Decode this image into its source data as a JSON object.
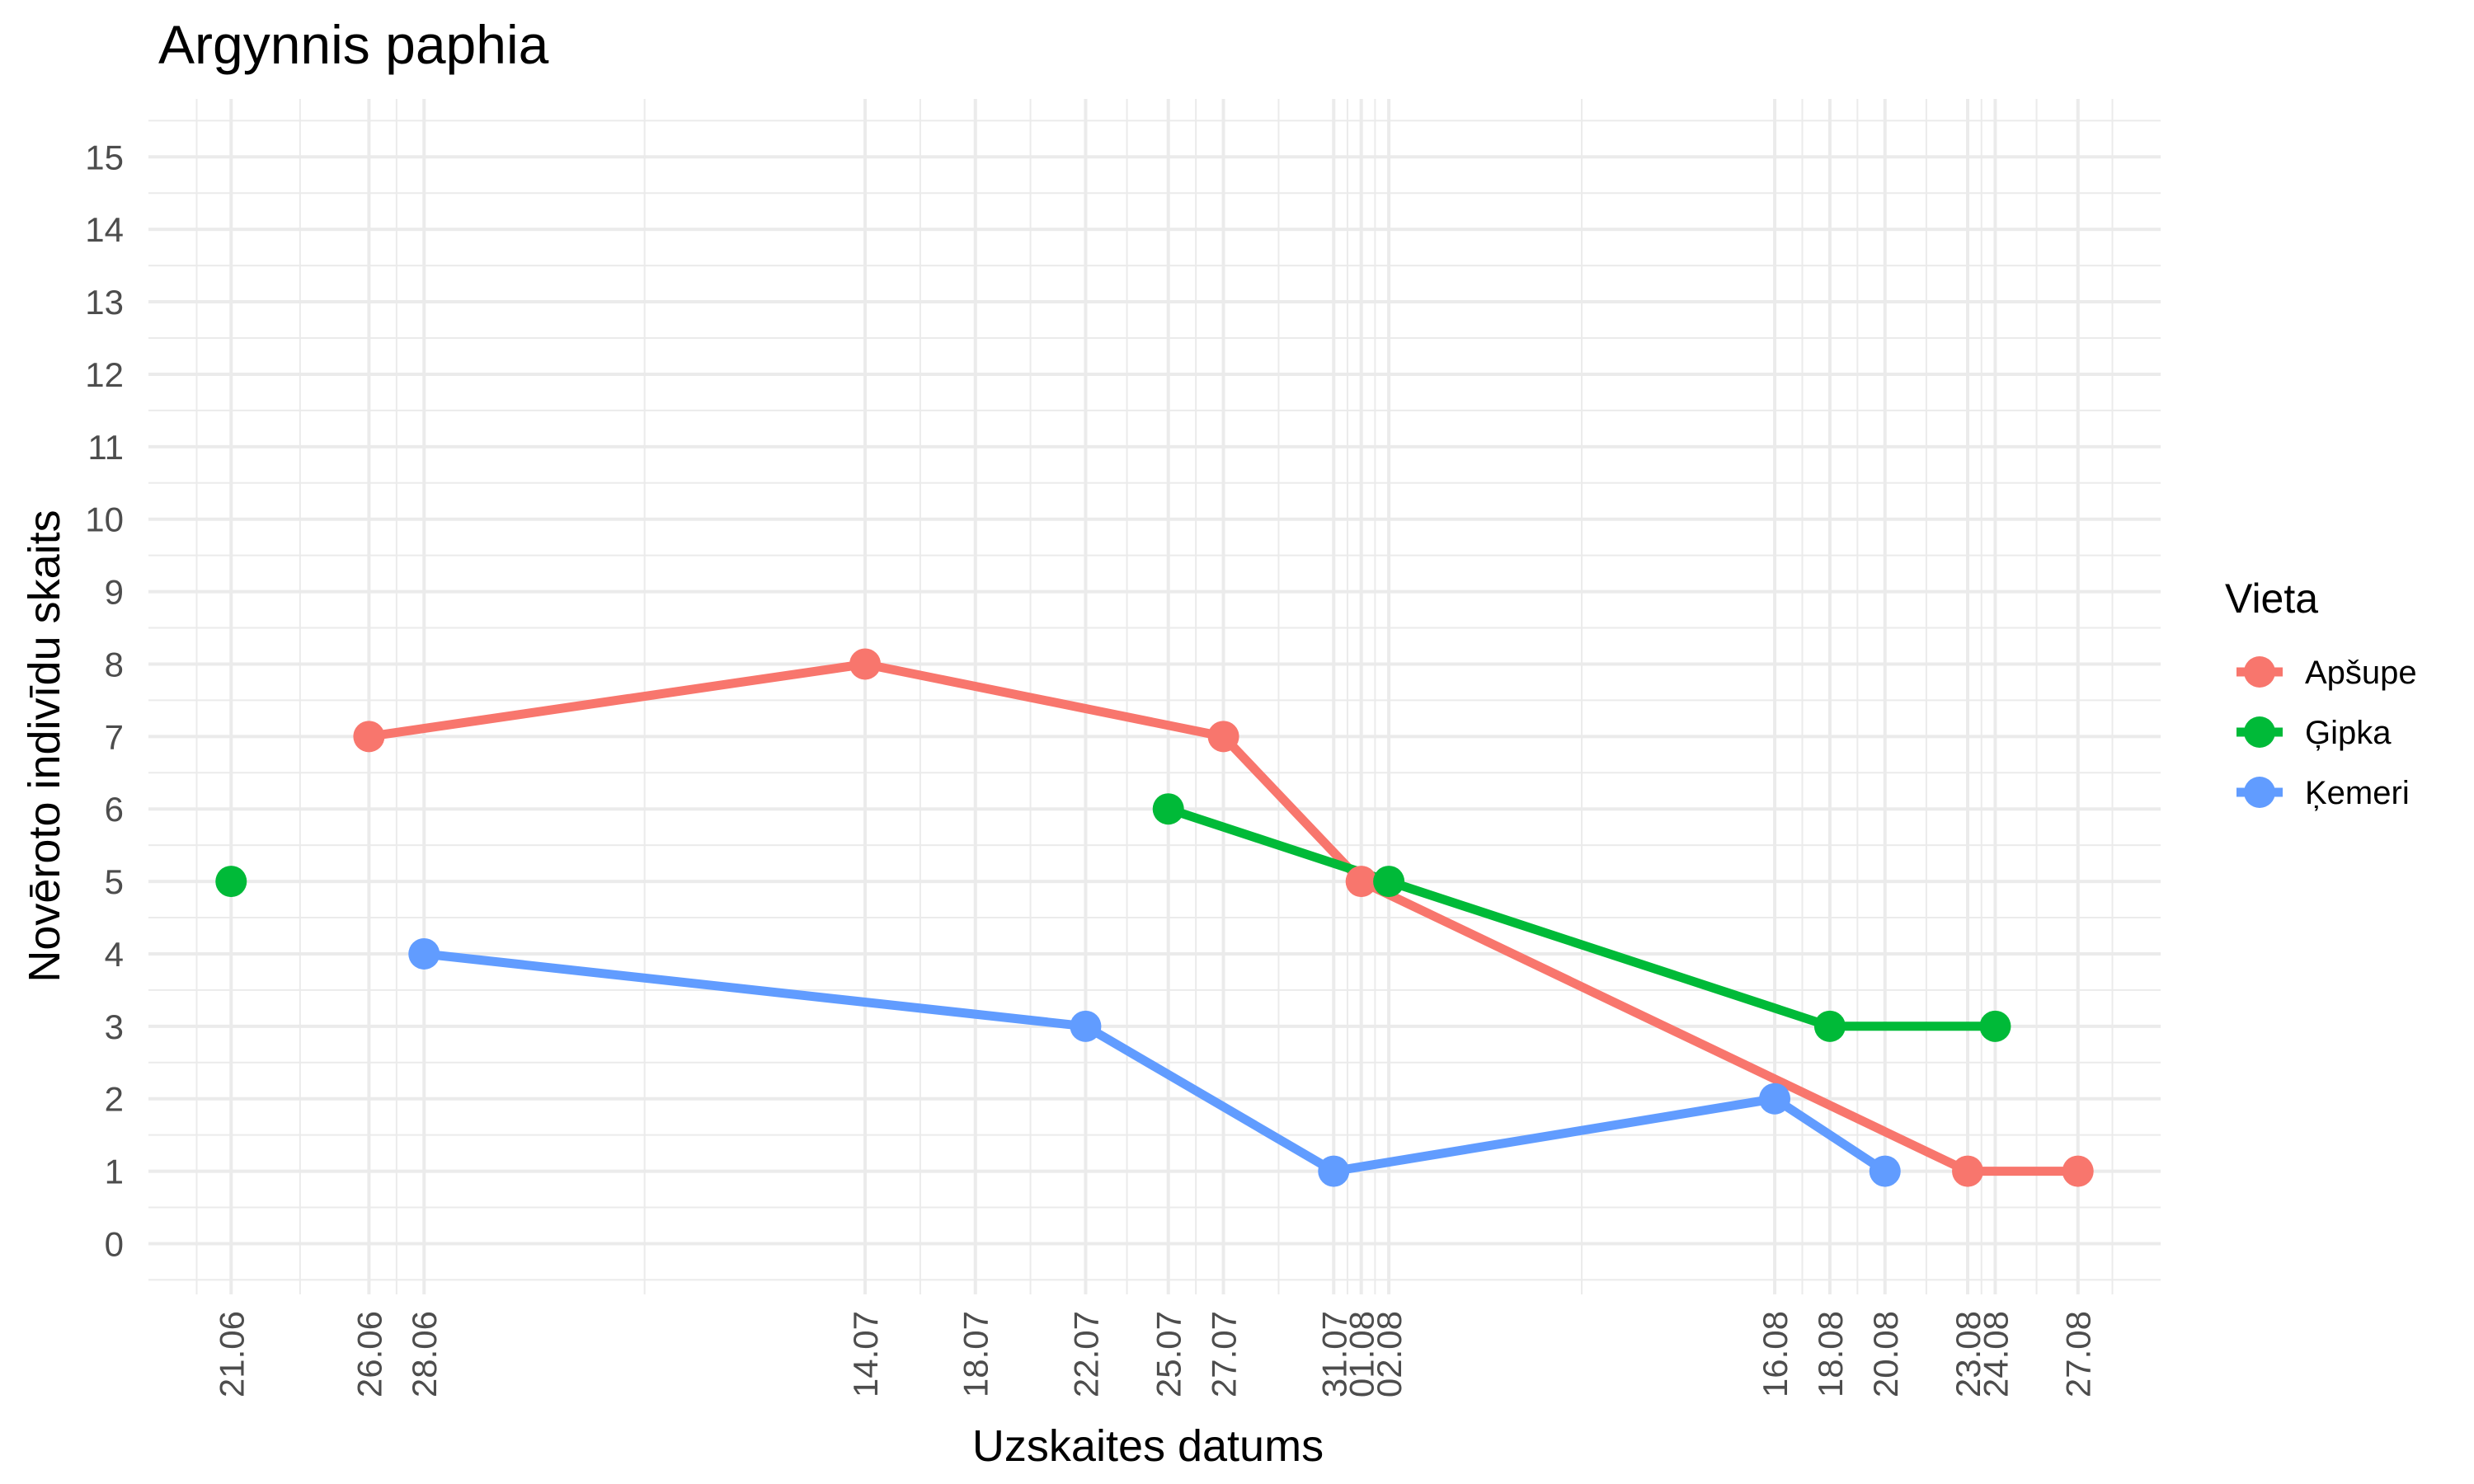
{
  "chart_data": {
    "type": "line",
    "title": "Argynnis paphia",
    "xlabel": "Uzskaites datums",
    "ylabel": "Novēroto indivīdu skaits",
    "x_tick_labels": [
      {
        "date": "2020-06-21",
        "label": "21.06"
      },
      {
        "date": "2020-06-26",
        "label": "26.06"
      },
      {
        "date": "2020-06-28",
        "label": "28.06"
      },
      {
        "date": "2020-07-14",
        "label": "14.07"
      },
      {
        "date": "2020-07-18",
        "label": "18.07"
      },
      {
        "date": "2020-07-22",
        "label": "22.07"
      },
      {
        "date": "2020-07-25",
        "label": "25.07"
      },
      {
        "date": "2020-07-27",
        "label": "27.07"
      },
      {
        "date": "2020-07-31",
        "label": "31.07"
      },
      {
        "date": "2020-08-01",
        "label": "01.08"
      },
      {
        "date": "2020-08-02",
        "label": "02.08"
      },
      {
        "date": "2020-08-16",
        "label": "16.08"
      },
      {
        "date": "2020-08-18",
        "label": "18.08"
      },
      {
        "date": "2020-08-20",
        "label": "20.08"
      },
      {
        "date": "2020-08-23",
        "label": "23.08"
      },
      {
        "date": "2020-08-24",
        "label": "24.08"
      },
      {
        "date": "2020-08-27",
        "label": "27.08"
      }
    ],
    "y_ticks": [
      0,
      1,
      2,
      3,
      4,
      5,
      6,
      7,
      8,
      9,
      10,
      11,
      12,
      13,
      14,
      15
    ],
    "ylim": [
      -0.7,
      15.8
    ],
    "xlim": [
      "2020-06-18",
      "2020-08-30"
    ],
    "grid": true,
    "legend_title": "Vieta",
    "legend_position": "right",
    "series": [
      {
        "name": "Apšupe",
        "color": "#F8766D",
        "points": [
          {
            "date": "2020-06-26",
            "y": 7
          },
          {
            "date": "2020-07-14",
            "y": 8
          },
          {
            "date": "2020-07-27",
            "y": 7
          },
          {
            "date": "2020-08-01",
            "y": 5
          },
          {
            "date": "2020-08-23",
            "y": 1
          },
          {
            "date": "2020-08-27",
            "y": 1
          }
        ]
      },
      {
        "name": "Ģipka",
        "color": "#00BA38",
        "points": [
          {
            "date": "2020-06-21",
            "y": 5
          },
          {
            "date": "2020-07-25",
            "y": 6
          },
          {
            "date": "2020-08-02",
            "y": 5
          },
          {
            "date": "2020-08-18",
            "y": 3
          },
          {
            "date": "2020-08-24",
            "y": 3
          }
        ],
        "line_from_index": 1
      },
      {
        "name": "Ķemeri",
        "color": "#619CFF",
        "points": [
          {
            "date": "2020-06-28",
            "y": 4
          },
          {
            "date": "2020-07-22",
            "y": 3
          },
          {
            "date": "2020-07-31",
            "y": 1
          },
          {
            "date": "2020-08-16",
            "y": 2
          },
          {
            "date": "2020-08-20",
            "y": 1
          }
        ]
      }
    ]
  }
}
